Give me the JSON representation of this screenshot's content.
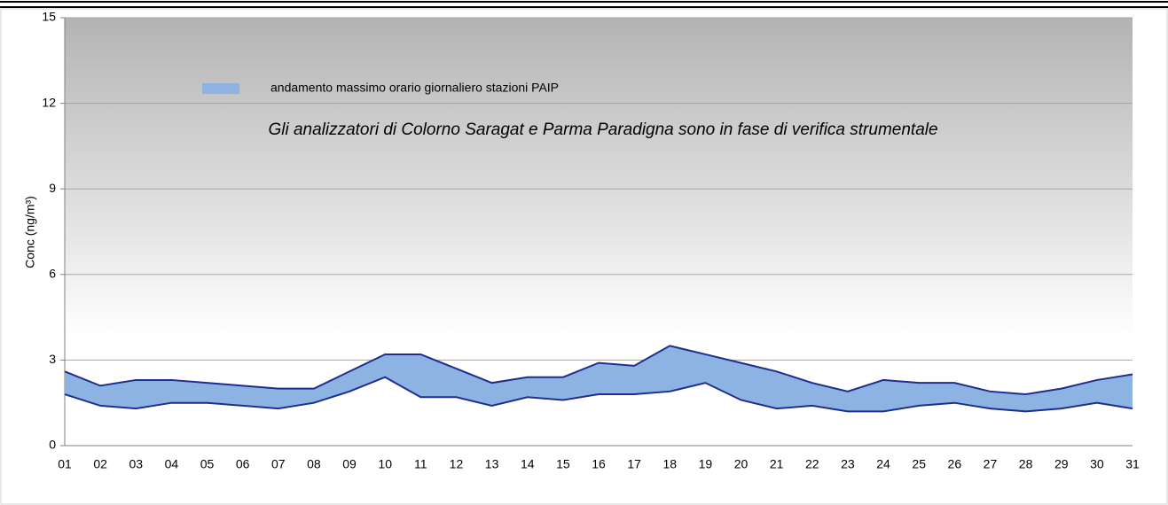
{
  "chart_data": {
    "type": "band",
    "y_label": "Conc (ng/m³)",
    "annotation": "Gli analizzatori di Colorno Saragat e Parma Paradigna sono in fase di verifica strumentale",
    "categories": [
      "01",
      "02",
      "03",
      "04",
      "05",
      "06",
      "07",
      "08",
      "09",
      "10",
      "11",
      "12",
      "13",
      "14",
      "15",
      "16",
      "17",
      "18",
      "19",
      "20",
      "21",
      "22",
      "23",
      "24",
      "25",
      "26",
      "27",
      "28",
      "29",
      "30",
      "31"
    ],
    "band": {
      "name": "andamento massimo orario giornaliero stazioni PAIP",
      "color": "#8db3e2",
      "line_color": "#1f2d8f",
      "upper": [
        2.6,
        2.1,
        2.3,
        2.3,
        2.2,
        2.1,
        2.0,
        2.0,
        2.6,
        3.2,
        3.2,
        2.7,
        2.2,
        2.4,
        2.4,
        2.9,
        2.8,
        3.5,
        3.2,
        2.9,
        2.6,
        2.2,
        1.9,
        2.3,
        2.2,
        2.2,
        1.9,
        1.8,
        2.0,
        2.3,
        2.5
      ],
      "lower": [
        1.8,
        1.4,
        1.3,
        1.5,
        1.5,
        1.4,
        1.3,
        1.5,
        1.9,
        2.4,
        1.7,
        1.7,
        1.4,
        1.7,
        1.6,
        1.8,
        1.8,
        1.9,
        2.2,
        1.6,
        1.3,
        1.4,
        1.2,
        1.2,
        1.4,
        1.5,
        1.3,
        1.2,
        1.3,
        1.5,
        1.3
      ]
    },
    "ylim": [
      0,
      15
    ],
    "yticks": [
      0,
      3,
      6,
      9,
      12,
      15
    ],
    "grid": true
  }
}
